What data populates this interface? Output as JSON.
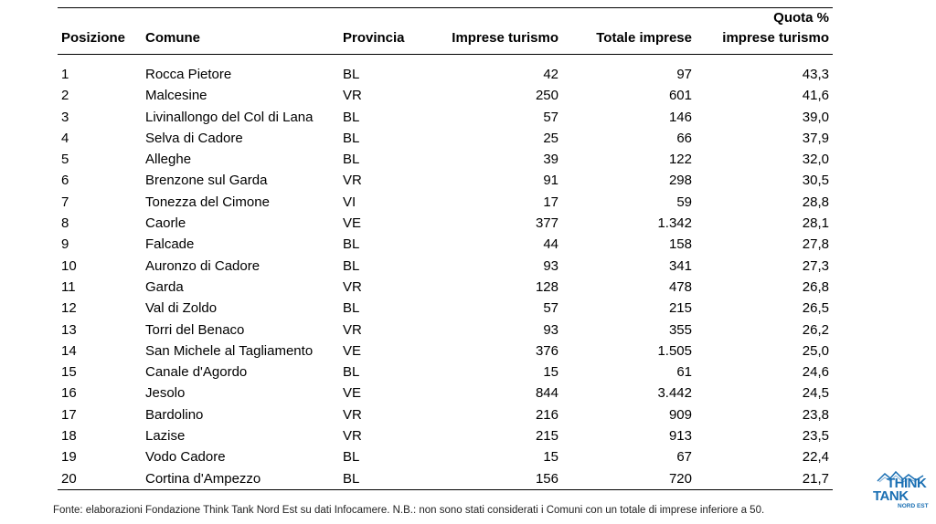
{
  "table": {
    "headers": {
      "posizione": "Posizione",
      "comune": "Comune",
      "provincia": "Provincia",
      "imprese_turismo": "Imprese turismo",
      "totale_imprese": "Totale imprese",
      "quota_line1": "Quota %",
      "quota_line2": "imprese turismo"
    },
    "rows": [
      {
        "pos": "1",
        "comune": "Rocca Pietore",
        "prov": "BL",
        "imp": "42",
        "tot": "97",
        "quota": "43,3"
      },
      {
        "pos": "2",
        "comune": "Malcesine",
        "prov": "VR",
        "imp": "250",
        "tot": "601",
        "quota": "41,6"
      },
      {
        "pos": "3",
        "comune": "Livinallongo del Col di Lana",
        "prov": "BL",
        "imp": "57",
        "tot": "146",
        "quota": "39,0"
      },
      {
        "pos": "4",
        "comune": "Selva di Cadore",
        "prov": "BL",
        "imp": "25",
        "tot": "66",
        "quota": "37,9"
      },
      {
        "pos": "5",
        "comune": "Alleghe",
        "prov": "BL",
        "imp": "39",
        "tot": "122",
        "quota": "32,0"
      },
      {
        "pos": "6",
        "comune": "Brenzone sul Garda",
        "prov": "VR",
        "imp": "91",
        "tot": "298",
        "quota": "30,5"
      },
      {
        "pos": "7",
        "comune": "Tonezza del Cimone",
        "prov": "VI",
        "imp": "17",
        "tot": "59",
        "quota": "28,8"
      },
      {
        "pos": "8",
        "comune": "Caorle",
        "prov": "VE",
        "imp": "377",
        "tot": "1.342",
        "quota": "28,1"
      },
      {
        "pos": "9",
        "comune": "Falcade",
        "prov": "BL",
        "imp": "44",
        "tot": "158",
        "quota": "27,8"
      },
      {
        "pos": "10",
        "comune": "Auronzo di Cadore",
        "prov": "BL",
        "imp": "93",
        "tot": "341",
        "quota": "27,3"
      },
      {
        "pos": "11",
        "comune": "Garda",
        "prov": "VR",
        "imp": "128",
        "tot": "478",
        "quota": "26,8"
      },
      {
        "pos": "12",
        "comune": "Val di Zoldo",
        "prov": "BL",
        "imp": "57",
        "tot": "215",
        "quota": "26,5"
      },
      {
        "pos": "13",
        "comune": "Torri del Benaco",
        "prov": "VR",
        "imp": "93",
        "tot": "355",
        "quota": "26,2"
      },
      {
        "pos": "14",
        "comune": "San Michele al Tagliamento",
        "prov": "VE",
        "imp": "376",
        "tot": "1.505",
        "quota": "25,0"
      },
      {
        "pos": "15",
        "comune": "Canale d'Agordo",
        "prov": "BL",
        "imp": "15",
        "tot": "61",
        "quota": "24,6"
      },
      {
        "pos": "16",
        "comune": "Jesolo",
        "prov": "VE",
        "imp": "844",
        "tot": "3.442",
        "quota": "24,5"
      },
      {
        "pos": "17",
        "comune": "Bardolino",
        "prov": "VR",
        "imp": "216",
        "tot": "909",
        "quota": "23,8"
      },
      {
        "pos": "18",
        "comune": "Lazise",
        "prov": "VR",
        "imp": "215",
        "tot": "913",
        "quota": "23,5"
      },
      {
        "pos": "19",
        "comune": "Vodo Cadore",
        "prov": "BL",
        "imp": "15",
        "tot": "67",
        "quota": "22,4"
      },
      {
        "pos": "20",
        "comune": "Cortina d'Ampezzo",
        "prov": "BL",
        "imp": "156",
        "tot": "720",
        "quota": "21,7"
      }
    ]
  },
  "footnote": "Fonte: elaborazioni Fondazione Think Tank Nord Est su dati Infocamere. N.B.: non sono stati considerati i Comuni con un totale di imprese inferiore a 50.",
  "logo": {
    "line1": "THINK",
    "line2": "TANK",
    "line3": "NORD EST",
    "color": "#1a6fb3",
    "icon": "mountains-icon"
  }
}
